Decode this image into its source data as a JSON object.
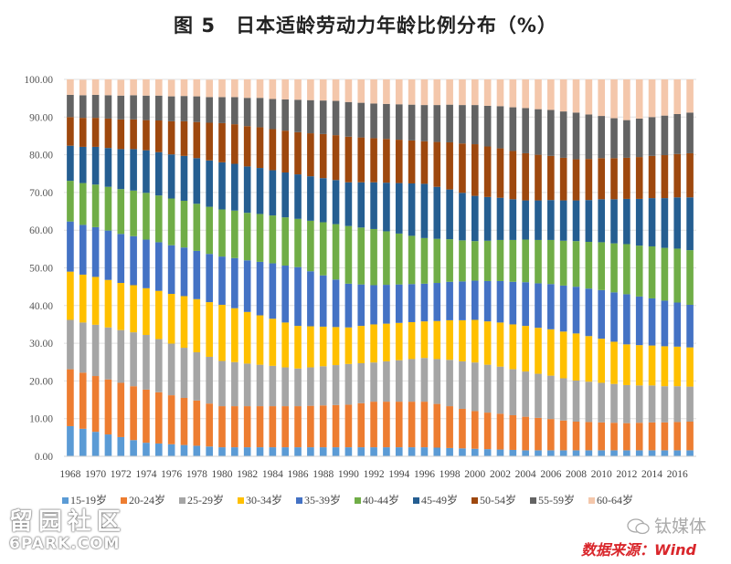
{
  "title": "图 5　日本适龄劳动力年龄比例分布（%）",
  "watermark_left": {
    "line1": "留园社区",
    "line2": "6PARK.COM"
  },
  "watermark_right": "钛媒体",
  "source": "数据来源：Wind",
  "chart_data": {
    "type": "bar",
    "stacked": true,
    "title": "图 5　日本适龄劳动力年龄比例分布（%）",
    "xlabel": "",
    "ylabel": "",
    "ylim": [
      0,
      100
    ],
    "yticks": [
      "0.00",
      "10.00",
      "20.00",
      "30.00",
      "40.00",
      "50.00",
      "60.00",
      "70.00",
      "80.00",
      "90.00",
      "100.00"
    ],
    "grid": true,
    "legend_position": "bottom",
    "categories": [
      1968,
      1969,
      1970,
      1971,
      1972,
      1973,
      1974,
      1975,
      1976,
      1977,
      1978,
      1979,
      1980,
      1981,
      1982,
      1983,
      1984,
      1985,
      1986,
      1987,
      1988,
      1989,
      1990,
      1991,
      1992,
      1993,
      1994,
      1995,
      1996,
      1997,
      1998,
      1999,
      2000,
      2001,
      2002,
      2003,
      2004,
      2005,
      2006,
      2007,
      2008,
      2009,
      2010,
      2011,
      2012,
      2013,
      2014,
      2015,
      2016,
      2017
    ],
    "xtick_labels": [
      "1968",
      "1970",
      "1972",
      "1974",
      "1976",
      "1978",
      "1980",
      "1982",
      "1984",
      "1986",
      "1988",
      "1990",
      "1992",
      "1994",
      "1996",
      "1998",
      "2000",
      "2002",
      "2004",
      "2006",
      "2008",
      "2010",
      "2012",
      "2014",
      "2016"
    ],
    "series": [
      {
        "name": "15-19岁",
        "color": "#5b9bd5",
        "values": [
          8.0,
          7.3,
          6.5,
          5.8,
          5.1,
          4.3,
          3.6,
          3.4,
          3.2,
          3.0,
          2.8,
          2.6,
          2.4,
          2.4,
          2.4,
          2.4,
          2.4,
          2.4,
          2.4,
          2.4,
          2.4,
          2.4,
          2.4,
          2.4,
          2.4,
          2.4,
          2.4,
          2.4,
          2.4,
          2.3,
          2.2,
          2.1,
          2.0,
          1.9,
          1.8,
          1.7,
          1.6,
          1.6,
          1.6,
          1.6,
          1.6,
          1.6,
          1.6,
          1.6,
          1.6,
          1.6,
          1.6,
          1.6,
          1.6,
          1.6
        ]
      },
      {
        "name": "20-24岁",
        "color": "#ed7d31",
        "values": [
          15.1,
          14.9,
          14.8,
          14.6,
          14.4,
          14.3,
          14.1,
          13.6,
          13.0,
          12.5,
          12.0,
          11.4,
          10.9,
          10.9,
          10.9,
          10.9,
          10.9,
          10.9,
          10.9,
          11.0,
          11.1,
          11.2,
          11.3,
          11.7,
          12.1,
          12.1,
          12.1,
          12.1,
          12.1,
          11.6,
          11.1,
          10.5,
          10.0,
          9.7,
          9.5,
          9.2,
          8.9,
          8.6,
          8.3,
          7.9,
          7.6,
          7.5,
          7.4,
          7.3,
          7.2,
          7.3,
          7.4,
          7.4,
          7.5,
          7.6
        ]
      },
      {
        "name": "25-29岁",
        "color": "#a5a5a5",
        "values": [
          13.1,
          13.3,
          13.6,
          13.8,
          14.0,
          14.3,
          14.5,
          14.1,
          13.7,
          13.3,
          12.8,
          12.4,
          12.0,
          11.7,
          11.3,
          11.0,
          10.7,
          10.3,
          10.0,
          10.2,
          10.4,
          10.6,
          10.8,
          10.6,
          10.4,
          10.7,
          11.0,
          11.3,
          11.6,
          11.9,
          12.3,
          12.6,
          12.9,
          12.7,
          12.5,
          12.2,
          12.0,
          11.7,
          11.5,
          11.2,
          10.9,
          10.7,
          10.5,
          10.3,
          10.1,
          9.9,
          9.8,
          9.6,
          9.5,
          9.3
        ]
      },
      {
        "name": "30-34岁",
        "color": "#ffc000",
        "values": [
          12.8,
          12.7,
          12.7,
          12.6,
          12.5,
          12.5,
          12.4,
          12.8,
          13.2,
          13.7,
          14.1,
          14.5,
          14.9,
          14.3,
          13.7,
          13.1,
          12.5,
          11.9,
          11.3,
          10.9,
          10.5,
          10.1,
          9.7,
          9.9,
          10.1,
          10.0,
          9.9,
          9.8,
          9.7,
          10.1,
          10.5,
          10.9,
          11.3,
          11.5,
          11.7,
          11.9,
          12.1,
          12.2,
          12.3,
          12.4,
          12.5,
          12.1,
          11.7,
          11.2,
          10.8,
          10.7,
          10.6,
          10.6,
          10.5,
          10.4
        ]
      },
      {
        "name": "35-39岁",
        "color": "#4472c4",
        "values": [
          13.3,
          13.2,
          13.2,
          13.1,
          13.0,
          13.0,
          12.9,
          12.9,
          12.9,
          12.9,
          12.8,
          12.8,
          12.8,
          13.3,
          13.7,
          14.2,
          14.7,
          15.1,
          15.6,
          14.6,
          13.6,
          12.6,
          11.6,
          11.0,
          10.4,
          10.3,
          10.2,
          10.1,
          10.0,
          10.1,
          10.2,
          10.3,
          10.4,
          10.7,
          11.0,
          11.3,
          11.6,
          11.8,
          12.0,
          12.2,
          12.4,
          12.6,
          12.9,
          13.1,
          13.3,
          12.9,
          12.5,
          12.1,
          11.7,
          11.3
        ]
      },
      {
        "name": "40-44岁",
        "color": "#70ad47",
        "values": [
          10.8,
          11.1,
          11.3,
          11.6,
          11.9,
          12.1,
          12.4,
          12.4,
          12.4,
          12.4,
          12.5,
          12.5,
          12.5,
          12.6,
          12.6,
          12.7,
          12.7,
          12.8,
          12.8,
          13.4,
          14.1,
          14.7,
          15.3,
          15.1,
          14.9,
          14.2,
          13.5,
          12.8,
          12.1,
          11.7,
          11.3,
          10.9,
          10.5,
          10.7,
          10.9,
          11.1,
          11.3,
          11.5,
          11.7,
          11.9,
          12.1,
          12.4,
          12.7,
          13.0,
          13.3,
          13.5,
          13.8,
          14.0,
          14.3,
          14.5
        ]
      },
      {
        "name": "45-49岁",
        "color": "#255e91",
        "values": [
          9.3,
          9.6,
          10.0,
          10.3,
          10.6,
          11.0,
          11.3,
          11.5,
          11.7,
          11.9,
          12.1,
          12.3,
          12.5,
          12.4,
          12.3,
          12.2,
          12.0,
          11.9,
          11.8,
          11.8,
          11.7,
          11.7,
          11.6,
          12.0,
          12.4,
          12.9,
          13.4,
          13.9,
          14.4,
          13.8,
          13.2,
          12.6,
          12.0,
          11.6,
          11.2,
          10.8,
          10.4,
          10.5,
          10.6,
          10.7,
          10.8,
          11.1,
          11.4,
          11.7,
          12.0,
          12.4,
          12.8,
          13.2,
          13.6,
          14.0
        ]
      },
      {
        "name": "50-54岁",
        "color": "#9e480e",
        "values": [
          7.6,
          7.7,
          7.7,
          7.8,
          7.9,
          7.9,
          8.0,
          8.4,
          8.8,
          9.2,
          9.6,
          10.0,
          10.4,
          10.5,
          10.7,
          10.8,
          10.9,
          11.1,
          11.2,
          11.4,
          11.7,
          11.9,
          12.1,
          11.9,
          11.7,
          11.6,
          11.5,
          11.4,
          11.3,
          11.9,
          12.5,
          13.1,
          13.7,
          13.4,
          13.1,
          12.8,
          12.5,
          12.1,
          11.7,
          11.3,
          10.9,
          10.9,
          10.9,
          10.9,
          10.9,
          11.1,
          11.2,
          11.4,
          11.5,
          11.7
        ]
      },
      {
        "name": "55-59岁",
        "color": "#636363",
        "values": [
          5.9,
          6.0,
          6.1,
          6.2,
          6.3,
          6.4,
          6.5,
          6.6,
          6.6,
          6.7,
          6.8,
          6.8,
          6.9,
          7.2,
          7.5,
          7.8,
          8.0,
          8.3,
          8.6,
          8.8,
          8.9,
          9.1,
          9.2,
          9.2,
          9.2,
          9.3,
          9.4,
          9.5,
          9.6,
          9.8,
          10.0,
          10.2,
          10.4,
          10.8,
          11.2,
          11.6,
          12.0,
          12.1,
          12.2,
          12.3,
          12.4,
          11.8,
          11.2,
          10.6,
          10.0,
          10.2,
          10.3,
          10.5,
          10.6,
          10.8
        ]
      },
      {
        "name": "60-64岁",
        "color": "#f4c7ab",
        "values": [
          4.1,
          4.1,
          4.2,
          4.2,
          4.2,
          4.3,
          4.3,
          4.4,
          4.4,
          4.5,
          4.6,
          4.6,
          4.7,
          4.8,
          4.9,
          5.0,
          5.2,
          5.3,
          5.4,
          5.6,
          5.7,
          5.9,
          6.0,
          6.2,
          6.4,
          6.5,
          6.6,
          6.7,
          6.8,
          6.8,
          6.8,
          6.8,
          6.8,
          7.0,
          7.2,
          7.4,
          7.6,
          7.9,
          8.2,
          8.5,
          8.8,
          9.3,
          9.8,
          10.3,
          10.8,
          10.4,
          10.0,
          9.6,
          9.2,
          8.8
        ]
      }
    ]
  }
}
